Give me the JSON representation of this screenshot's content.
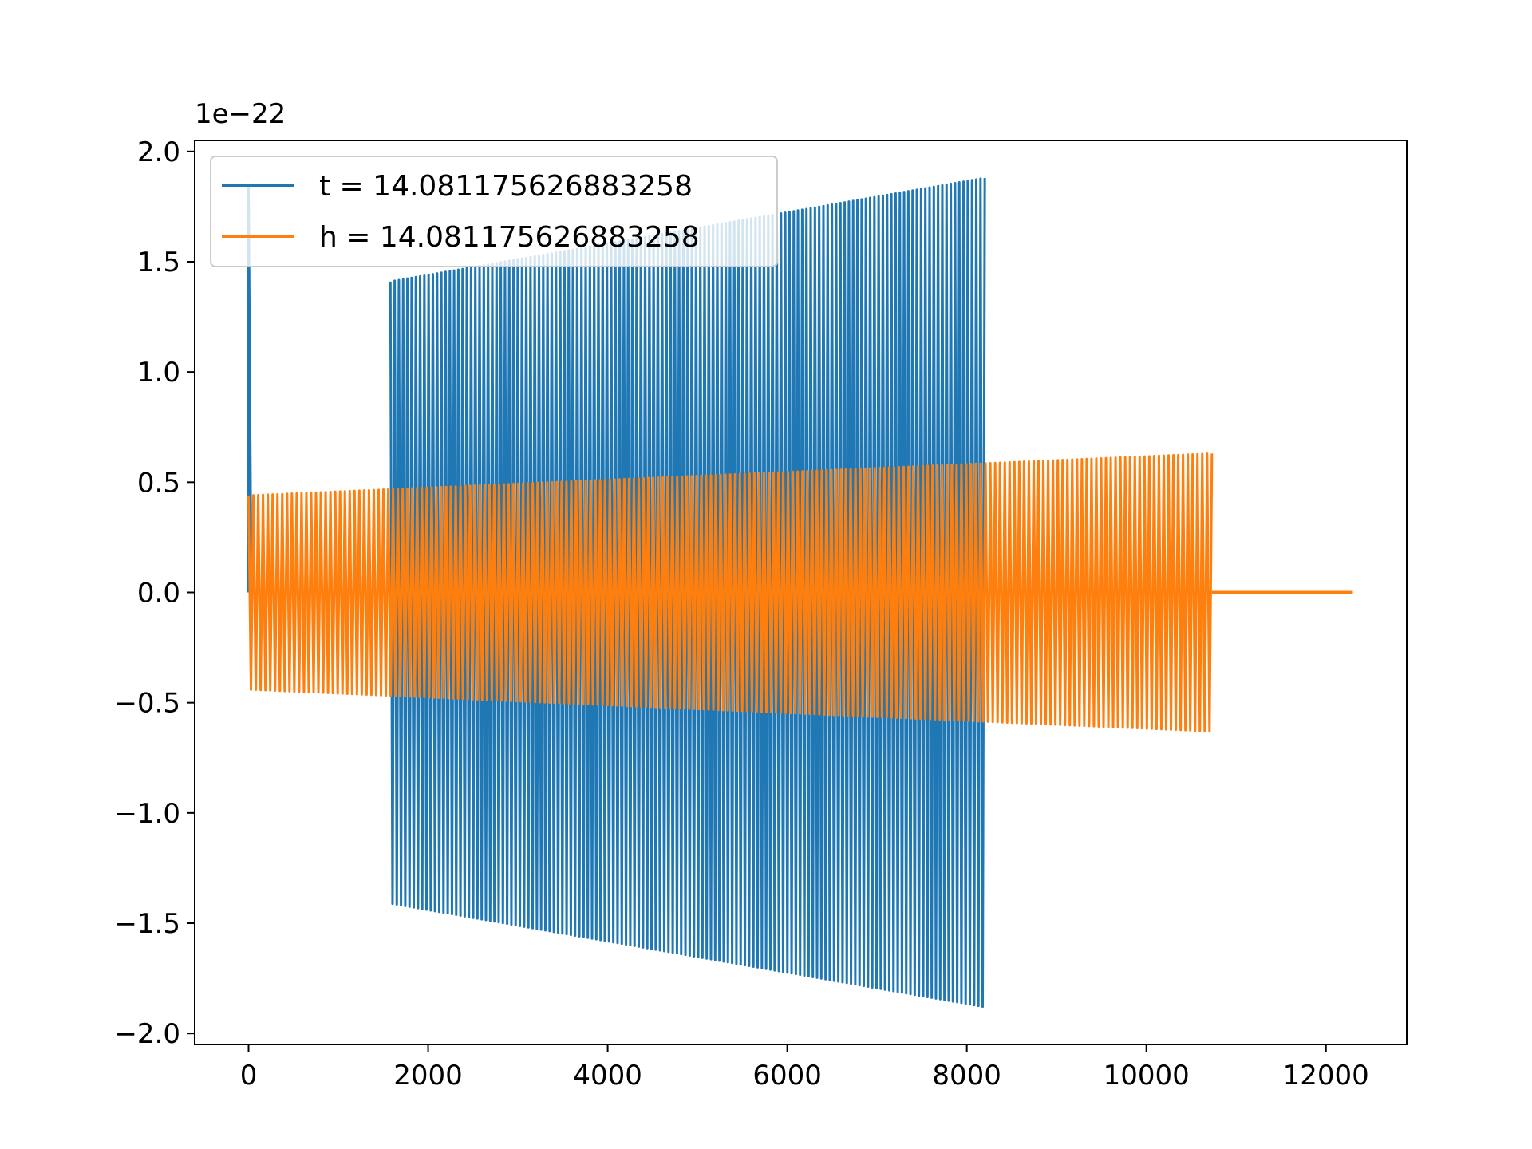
{
  "chart_data": {
    "type": "line",
    "title": "",
    "xlabel": "",
    "ylabel": "",
    "y_offset_label": "1e−22",
    "xlim": [
      -600,
      12900
    ],
    "ylim": [
      -2.05,
      2.05
    ],
    "x_ticks": [
      0,
      2000,
      4000,
      6000,
      8000,
      10000,
      12000
    ],
    "x_tick_labels": [
      "0",
      "2000",
      "4000",
      "6000",
      "8000",
      "10000",
      "12000"
    ],
    "y_ticks": [
      -2.0,
      -1.5,
      -1.0,
      -0.5,
      0.0,
      0.5,
      1.0,
      1.5,
      2.0
    ],
    "y_tick_labels": [
      "−2.0",
      "−1.5",
      "−1.0",
      "−0.5",
      "0.0",
      "0.5",
      "1.0",
      "1.5",
      "2.0"
    ],
    "grid": false,
    "legend_position": "top-left",
    "series": [
      {
        "name": "t = 14.081175626883258",
        "color": "#1f77b4",
        "spike": {
          "x": 0,
          "peak": 1.85,
          "width": 25
        },
        "gap": {
          "x_start": 25,
          "x_end": 1580
        },
        "oscillation": {
          "x_start": 1580,
          "x_end": 8200,
          "amp_start": 1.41,
          "amp_end": 1.88,
          "cycles": 140
        }
      },
      {
        "name": "h = 14.081175626883258",
        "color": "#ff7f0e",
        "oscillation": {
          "x_start": 0,
          "x_end": 10730,
          "amp_start": 0.44,
          "amp_end": 0.63,
          "cycles": 200
        },
        "flat_tail": {
          "x_start": 10730,
          "x_end": 12300,
          "value": 0.0
        }
      }
    ]
  }
}
